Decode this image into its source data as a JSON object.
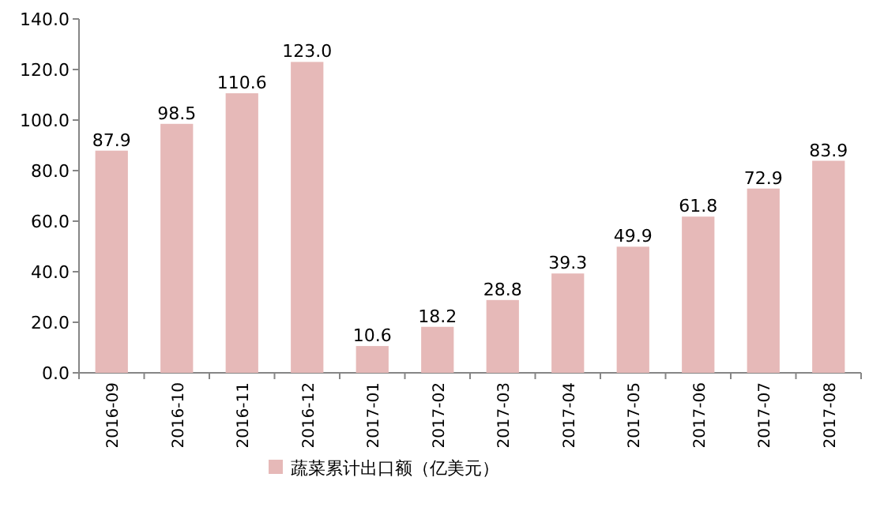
{
  "chart_data": {
    "type": "bar",
    "categories": [
      "2016-09",
      "2016-10",
      "2016-11",
      "2016-12",
      "2017-01",
      "2017-02",
      "2017-03",
      "2017-04",
      "2017-05",
      "2017-06",
      "2017-07",
      "2017-08"
    ],
    "series": [
      {
        "name": "蔬菜累计出口额（亿美元）",
        "color": "#e6b9b8",
        "values": [
          87.9,
          98.5,
          110.6,
          123.0,
          10.6,
          18.2,
          28.8,
          39.3,
          49.9,
          61.8,
          72.9,
          83.9
        ],
        "value_labels": [
          "87.9",
          "98.5",
          "110.6",
          "123.0",
          "10.6",
          "18.2",
          "28.8",
          "39.3",
          "49.9",
          "61.8",
          "72.9",
          "83.9"
        ]
      }
    ],
    "ylim": [
      0,
      140
    ],
    "yticks": [
      {
        "value": 0,
        "label": "0.0"
      },
      {
        "value": 20,
        "label": "20.0"
      },
      {
        "value": 40,
        "label": "40.0"
      },
      {
        "value": 60,
        "label": "60.0"
      },
      {
        "value": 80,
        "label": "80.0"
      },
      {
        "value": 100,
        "label": "100.0"
      },
      {
        "value": 120,
        "label": "120.0"
      },
      {
        "value": 140,
        "label": "140.0"
      }
    ],
    "legend": "bottom"
  }
}
